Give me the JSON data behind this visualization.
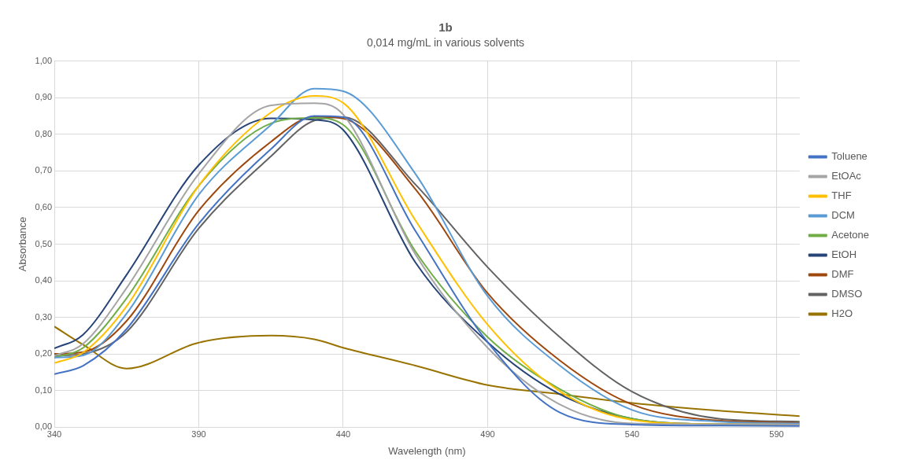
{
  "chart_data": {
    "type": "line",
    "title": "1b",
    "subtitle": "0,014 mg/mL in various solvents",
    "xlabel": "Wavelength (nm)",
    "ylabel": "Absorbance",
    "x": [
      340,
      350,
      365,
      390,
      415,
      430,
      440,
      465,
      490,
      515,
      540,
      570,
      598
    ],
    "series": [
      {
        "name": "Toluene",
        "color": "#4472c4",
        "values": [
          0.145,
          0.168,
          0.268,
          0.556,
          0.76,
          0.85,
          0.847,
          0.536,
          0.232,
          0.04,
          0.007,
          0.004,
          0.003
        ]
      },
      {
        "name": "EtOAc",
        "color": "#a5a5a5",
        "values": [
          0.195,
          0.228,
          0.38,
          0.692,
          0.879,
          0.885,
          0.854,
          0.472,
          0.217,
          0.062,
          0.01,
          0.008,
          0.007
        ]
      },
      {
        "name": "THF",
        "color": "#ffc000",
        "values": [
          0.175,
          0.204,
          0.33,
          0.66,
          0.86,
          0.905,
          0.886,
          0.565,
          0.28,
          0.098,
          0.02,
          0.008,
          0.007
        ]
      },
      {
        "name": "DCM",
        "color": "#5b9bd5",
        "values": [
          0.19,
          0.196,
          0.31,
          0.635,
          0.826,
          0.925,
          0.918,
          0.692,
          0.358,
          0.168,
          0.047,
          0.015,
          0.01
        ]
      },
      {
        "name": "Acetone",
        "color": "#70ad47",
        "values": [
          0.19,
          0.217,
          0.352,
          0.66,
          0.83,
          0.845,
          0.826,
          0.48,
          0.246,
          0.104,
          0.023,
          0.008,
          0.007
        ]
      },
      {
        "name": "EtOH",
        "color": "#264478",
        "values": [
          0.215,
          0.253,
          0.416,
          0.716,
          0.844,
          0.84,
          0.812,
          0.45,
          0.232,
          0.09,
          0.023,
          0.008,
          0.007
        ]
      },
      {
        "name": "DMF",
        "color": "#9e480e",
        "values": [
          0.2,
          0.205,
          0.29,
          0.592,
          0.78,
          0.848,
          0.843,
          0.65,
          0.366,
          0.182,
          0.062,
          0.018,
          0.012
        ]
      },
      {
        "name": "DMSO",
        "color": "#636363",
        "values": [
          0.195,
          0.2,
          0.26,
          0.543,
          0.74,
          0.838,
          0.847,
          0.663,
          0.437,
          0.246,
          0.097,
          0.023,
          0.015
        ]
      },
      {
        "name": "H2O",
        "color": "#997300",
        "values": [
          0.275,
          0.225,
          0.16,
          0.231,
          0.25,
          0.24,
          0.217,
          0.168,
          0.115,
          0.09,
          0.066,
          0.045,
          0.03
        ]
      }
    ],
    "xlim": [
      340,
      598
    ],
    "xticks": [
      340,
      390,
      440,
      490,
      540,
      590
    ],
    "ylim": [
      0,
      1
    ],
    "yticks": [
      {
        "value": 0,
        "label": "0,00"
      },
      {
        "value": 0.1,
        "label": "0,10"
      },
      {
        "value": 0.2,
        "label": "0,20"
      },
      {
        "value": 0.3,
        "label": "0,30"
      },
      {
        "value": 0.4,
        "label": "0,40"
      },
      {
        "value": 0.5,
        "label": "0,50"
      },
      {
        "value": 0.6,
        "label": "0,60"
      },
      {
        "value": 0.7,
        "label": "0,70"
      },
      {
        "value": 0.8,
        "label": "0,80"
      },
      {
        "value": 0.9,
        "label": "0,90"
      },
      {
        "value": 1,
        "label": "1,00"
      }
    ],
    "grid": true,
    "legend": "right",
    "marker": "none",
    "line_style": "solid"
  }
}
